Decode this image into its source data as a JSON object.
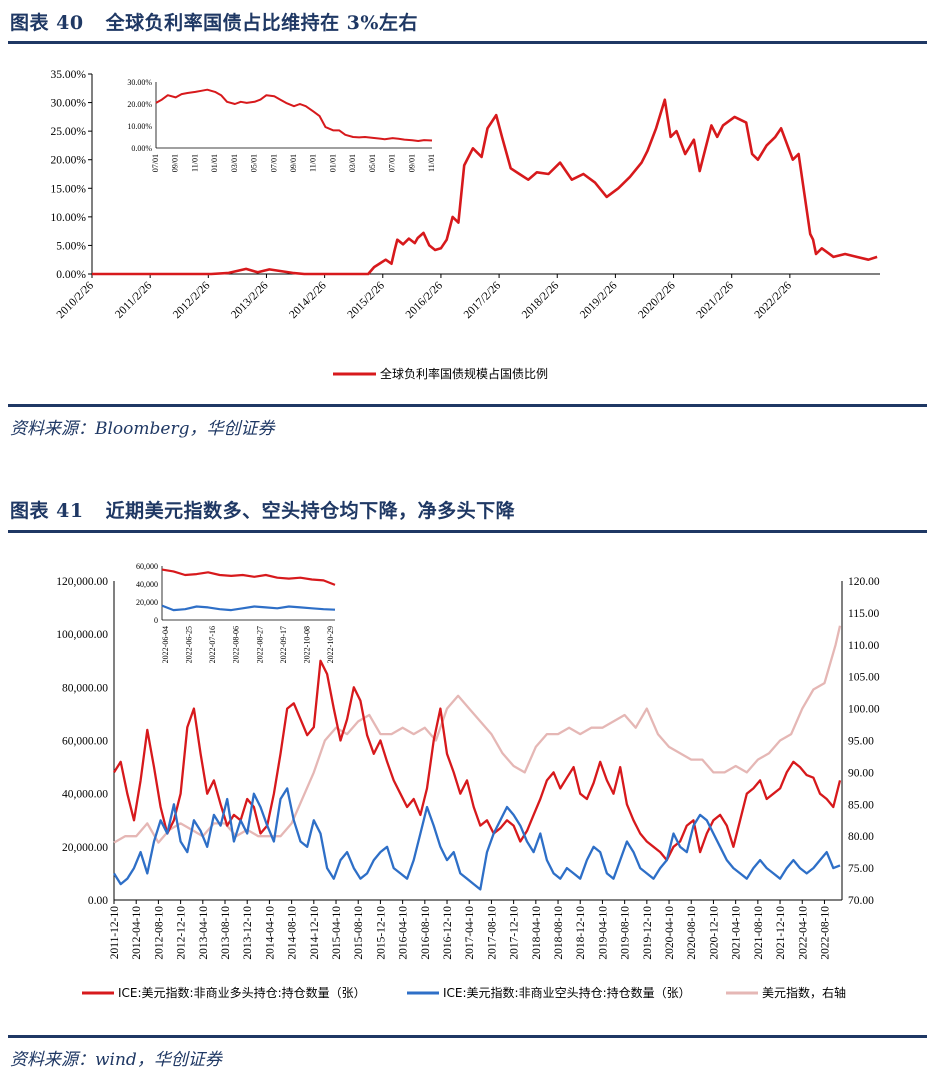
{
  "figure40": {
    "label": "图表 40",
    "title": "全球负利率国债占比维持在 3%左右",
    "source": "资料来源：Bloomberg，华创证券"
  },
  "figure41": {
    "label": "图表 41",
    "title": "近期美元指数多、空头持仓均下降，净多头下降",
    "source": "资料来源：wind，华创证券"
  },
  "chart_data": [
    {
      "type": "line",
      "title": "",
      "ylim": [
        0,
        35
      ],
      "y_ticks": [
        "35.00%",
        "30.00%",
        "25.00%",
        "20.00%",
        "15.00%",
        "10.00%",
        "5.00%",
        "0.00%"
      ],
      "x_ticks": [
        "2010/2/26",
        "2011/2/26",
        "2012/2/26",
        "2013/2/26",
        "2014/2/26",
        "2015/2/26",
        "2016/2/26",
        "2017/2/26",
        "2018/2/26",
        "2019/2/26",
        "2020/2/26",
        "2021/2/26",
        "2022/2/26"
      ],
      "legend_position": "bottom",
      "color": "#d7191c",
      "series": [
        {
          "name": "全球负利率国债规模占国债比例",
          "x": [
            2010.15,
            2012.2,
            2012.5,
            2012.8,
            2013.0,
            2013.2,
            2013.6,
            2013.8,
            2014.9,
            2015.0,
            2015.2,
            2015.3,
            2015.35,
            2015.4,
            2015.5,
            2015.6,
            2015.7,
            2015.75,
            2015.85,
            2015.95,
            2016.05,
            2016.15,
            2016.25,
            2016.35,
            2016.45,
            2016.55,
            2016.7,
            2016.85,
            2016.95,
            2017.1,
            2017.2,
            2017.35,
            2017.5,
            2017.65,
            2017.8,
            2018.0,
            2018.2,
            2018.4,
            2018.6,
            2018.8,
            2019.0,
            2019.2,
            2019.4,
            2019.6,
            2019.7,
            2019.85,
            2020.0,
            2020.1,
            2020.2,
            2020.35,
            2020.5,
            2020.6,
            2020.7,
            2020.8,
            2020.9,
            2021.0,
            2021.2,
            2021.4,
            2021.5,
            2021.6,
            2021.75,
            2021.9,
            2022.0,
            2022.2,
            2022.3,
            2022.4,
            2022.5,
            2022.55,
            2022.6,
            2022.7,
            2022.9,
            2023.1,
            2023.3,
            2023.5,
            2023.65
          ],
          "values": [
            0,
            0,
            0.2,
            0.9,
            0.3,
            0.8,
            0.2,
            0,
            0,
            1.2,
            2.5,
            1.8,
            4.0,
            6.0,
            5.2,
            6.2,
            5.4,
            6.3,
            7.2,
            5.0,
            4.2,
            4.5,
            6.0,
            10.0,
            9.0,
            19.0,
            22.0,
            20.5,
            25.5,
            27.8,
            24.0,
            18.5,
            17.5,
            16.5,
            17.8,
            17.5,
            19.5,
            16.5,
            17.5,
            16.0,
            13.5,
            15.0,
            17.0,
            19.5,
            21.5,
            25.5,
            30.5,
            24.0,
            25.0,
            21.0,
            23.5,
            18.0,
            22.0,
            26.0,
            24.0,
            26.0,
            27.5,
            26.5,
            21.0,
            20.0,
            22.5,
            24.0,
            25.5,
            20.0,
            21.0,
            14.0,
            7.0,
            6.0,
            3.5,
            4.5,
            3.0,
            3.5,
            3.0,
            2.5,
            3.0
          ]
        }
      ]
    },
    {
      "type": "line",
      "title": "",
      "inset": true,
      "ylim": [
        0,
        30
      ],
      "y_ticks": [
        "30.00%",
        "20.00%",
        "10.00%",
        "0.00%"
      ],
      "x_ticks": [
        "07/01",
        "09/01",
        "11/01",
        "01/01",
        "03/01",
        "05/01",
        "07/01",
        "09/01",
        "11/01",
        "01/01",
        "03/01",
        "05/01",
        "07/01",
        "09/01",
        "11/01"
      ],
      "color": "#d7191c",
      "series": [
        {
          "name": "",
          "x": [
            0,
            0.3,
            0.6,
            1,
            1.3,
            1.6,
            2,
            2.3,
            2.6,
            3,
            3.3,
            3.6,
            4,
            4.3,
            4.6,
            5,
            5.3,
            5.6,
            6,
            6.3,
            6.6,
            7,
            7.3,
            7.6,
            8,
            8.3,
            8.6,
            9,
            9.3,
            9.6,
            10,
            10.3,
            10.6,
            11,
            11.3,
            11.6,
            12,
            12.3,
            12.6,
            13,
            13.3,
            13.6,
            14
          ],
          "values": [
            20.5,
            22,
            24,
            23,
            24.5,
            25,
            25.5,
            26,
            26.5,
            25.5,
            24,
            21,
            20,
            21,
            20.5,
            21,
            22,
            24,
            23.5,
            22,
            20.5,
            19,
            20,
            19,
            16.5,
            14.5,
            9.5,
            8,
            8,
            6,
            5,
            4.8,
            5,
            4.6,
            4.3,
            4,
            4.5,
            4.2,
            3.8,
            3.5,
            3.2,
            3.6,
            3.4
          ]
        }
      ]
    },
    {
      "type": "line",
      "title": "",
      "ylim_left": [
        0,
        120000
      ],
      "ylim_right": [
        70,
        120
      ],
      "y_ticks_left": [
        "120,000.00",
        "100,000.00",
        "80,000.00",
        "60,000.00",
        "40,000.00",
        "20,000.00",
        "0.00"
      ],
      "y_ticks_right": [
        "120.00",
        "115.00",
        "110.00",
        "105.00",
        "100.00",
        "95.00",
        "90.00",
        "85.00",
        "80.00",
        "75.00",
        "70.00"
      ],
      "x_ticks": [
        "2011-12-10",
        "2012-04-10",
        "2012-08-10",
        "2012-12-10",
        "2013-04-10",
        "2013-08-10",
        "2013-12-10",
        "2014-04-10",
        "2014-08-10",
        "2014-12-10",
        "2015-04-10",
        "2015-08-10",
        "2015-12-10",
        "2016-04-10",
        "2016-08-10",
        "2016-12-10",
        "2017-04-10",
        "2017-08-10",
        "2017-12-10",
        "2018-04-10",
        "2018-08-10",
        "2018-12-10",
        "2019-04-10",
        "2019-08-10",
        "2019-12-10",
        "2020-04-10",
        "2020-08-10",
        "2020-12-10",
        "2021-04-10",
        "2021-08-10",
        "2021-12-10",
        "2022-04-10",
        "2022-08-10"
      ],
      "legend_position": "bottom",
      "series": [
        {
          "name": "ICE:美元指数:非商业多头持仓:持仓数量（张）",
          "axis": "left",
          "color": "#d7191c",
          "x": [
            0,
            0.3,
            0.6,
            0.9,
            1.2,
            1.5,
            1.8,
            2.1,
            2.4,
            2.7,
            3.0,
            3.3,
            3.6,
            3.9,
            4.2,
            4.5,
            4.8,
            5.1,
            5.4,
            5.7,
            6.0,
            6.3,
            6.6,
            6.9,
            7.2,
            7.5,
            7.8,
            8.1,
            8.4,
            8.7,
            9.0,
            9.3,
            9.6,
            9.9,
            10.2,
            10.5,
            10.8,
            11.1,
            11.4,
            11.7,
            12.0,
            12.3,
            12.6,
            12.9,
            13.2,
            13.5,
            13.8,
            14.1,
            14.4,
            14.7,
            15.0,
            15.3,
            15.6,
            15.9,
            16.2,
            16.5,
            16.8,
            17.1,
            17.4,
            17.7,
            18.0,
            18.3,
            18.6,
            18.9,
            19.2,
            19.5,
            19.8,
            20.1,
            20.4,
            20.7,
            21.0,
            21.3,
            21.6,
            21.9,
            22.2,
            22.5,
            22.8,
            23.1,
            23.4,
            23.7,
            24.0,
            24.3,
            24.6,
            24.9,
            25.2,
            25.5,
            25.8,
            26.1,
            26.4,
            26.7,
            27.0,
            27.3,
            27.6,
            27.9,
            28.2,
            28.5,
            28.8,
            29.1,
            29.4,
            29.7,
            30.0,
            30.3,
            30.6,
            30.9,
            31.2,
            31.5,
            31.8,
            32.1,
            32.4,
            32.7
          ],
          "values": [
            48000,
            52000,
            40000,
            30000,
            45000,
            64000,
            50000,
            35000,
            25000,
            30000,
            40000,
            65000,
            72000,
            55000,
            40000,
            45000,
            36000,
            28000,
            32000,
            30000,
            38000,
            35000,
            25000,
            28000,
            40000,
            55000,
            72000,
            74000,
            68000,
            62000,
            65000,
            90000,
            85000,
            72000,
            60000,
            68000,
            80000,
            75000,
            62000,
            55000,
            60000,
            52000,
            45000,
            40000,
            35000,
            38000,
            32000,
            42000,
            60000,
            72000,
            55000,
            48000,
            40000,
            45000,
            35000,
            28000,
            30000,
            25000,
            27000,
            30000,
            28000,
            22000,
            26000,
            32000,
            38000,
            45000,
            48000,
            42000,
            46000,
            50000,
            40000,
            38000,
            44000,
            52000,
            45000,
            40000,
            50000,
            36000,
            30000,
            25000,
            22000,
            20000,
            18000,
            15000,
            20000,
            22000,
            28000,
            30000,
            18000,
            25000,
            30000,
            32000,
            28000,
            20000,
            30000,
            40000,
            42000,
            45000,
            38000,
            40000,
            42000,
            48000,
            52000,
            50000,
            47000,
            46000,
            40000,
            38000,
            35000,
            45000
          ]
        },
        {
          "name": "ICE:美元指数:非商业空头持仓:持仓数量（张）",
          "axis": "left",
          "color": "#2e6fc7",
          "x": [
            0,
            0.3,
            0.6,
            0.9,
            1.2,
            1.5,
            1.8,
            2.1,
            2.4,
            2.7,
            3.0,
            3.3,
            3.6,
            3.9,
            4.2,
            4.5,
            4.8,
            5.1,
            5.4,
            5.7,
            6.0,
            6.3,
            6.6,
            6.9,
            7.2,
            7.5,
            7.8,
            8.1,
            8.4,
            8.7,
            9.0,
            9.3,
            9.6,
            9.9,
            10.2,
            10.5,
            10.8,
            11.1,
            11.4,
            11.7,
            12.0,
            12.3,
            12.6,
            12.9,
            13.2,
            13.5,
            13.8,
            14.1,
            14.4,
            14.7,
            15.0,
            15.3,
            15.6,
            15.9,
            16.2,
            16.5,
            16.8,
            17.1,
            17.4,
            17.7,
            18.0,
            18.3,
            18.6,
            18.9,
            19.2,
            19.5,
            19.8,
            20.1,
            20.4,
            20.7,
            21.0,
            21.3,
            21.6,
            21.9,
            22.2,
            22.5,
            22.8,
            23.1,
            23.4,
            23.7,
            24.0,
            24.3,
            24.6,
            24.9,
            25.2,
            25.5,
            25.8,
            26.1,
            26.4,
            26.7,
            27.0,
            27.3,
            27.6,
            27.9,
            28.2,
            28.5,
            28.8,
            29.1,
            29.4,
            29.7,
            30.0,
            30.3,
            30.6,
            30.9,
            31.2,
            31.5,
            31.8,
            32.1,
            32.4,
            32.7
          ],
          "values": [
            10000,
            6000,
            8000,
            12000,
            18000,
            10000,
            22000,
            30000,
            25000,
            36000,
            22000,
            18000,
            30000,
            26000,
            20000,
            32000,
            28000,
            38000,
            22000,
            30000,
            25000,
            40000,
            35000,
            28000,
            22000,
            38000,
            42000,
            30000,
            22000,
            20000,
            30000,
            25000,
            12000,
            8000,
            15000,
            18000,
            12000,
            8000,
            10000,
            15000,
            18000,
            20000,
            12000,
            10000,
            8000,
            15000,
            25000,
            35000,
            28000,
            20000,
            15000,
            18000,
            10000,
            8000,
            6000,
            4000,
            18000,
            25000,
            30000,
            35000,
            32000,
            28000,
            22000,
            18000,
            25000,
            15000,
            10000,
            8000,
            12000,
            10000,
            8000,
            15000,
            20000,
            18000,
            10000,
            8000,
            15000,
            22000,
            18000,
            12000,
            10000,
            8000,
            12000,
            15000,
            25000,
            20000,
            18000,
            28000,
            32000,
            30000,
            25000,
            20000,
            15000,
            12000,
            10000,
            8000,
            12000,
            15000,
            12000,
            10000,
            8000,
            12000,
            15000,
            12000,
            10000,
            12000,
            15000,
            18000,
            12000,
            13000
          ]
        },
        {
          "name": "美元指数，右轴",
          "axis": "right",
          "color": "#e5b7b5",
          "x": [
            0,
            0.5,
            1,
            1.5,
            2,
            2.5,
            3,
            3.5,
            4,
            4.5,
            5,
            5.5,
            6,
            6.5,
            7,
            7.5,
            8,
            8.5,
            9,
            9.5,
            10,
            10.5,
            11,
            11.5,
            12,
            12.5,
            13,
            13.5,
            14,
            14.5,
            15,
            15.5,
            16,
            16.5,
            17,
            17.5,
            18,
            18.5,
            19,
            19.5,
            20,
            20.5,
            21,
            21.5,
            22,
            22.5,
            23,
            23.5,
            24,
            24.5,
            25,
            25.5,
            26,
            26.5,
            27,
            27.5,
            28,
            28.5,
            29,
            29.5,
            30,
            30.5,
            31,
            31.5,
            32,
            32.5,
            32.7
          ],
          "values": [
            79,
            80,
            80,
            82,
            79,
            81,
            82,
            81,
            80,
            82,
            82,
            80,
            81,
            80,
            80,
            80,
            82,
            86,
            90,
            95,
            97,
            96,
            98,
            99,
            96,
            96,
            97,
            96,
            97,
            95,
            100,
            102,
            100,
            98,
            96,
            93,
            91,
            90,
            94,
            96,
            96,
            97,
            96,
            97,
            97,
            98,
            99,
            97,
            100,
            96,
            94,
            93,
            92,
            92,
            90,
            90,
            91,
            90,
            92,
            93,
            95,
            96,
            100,
            103,
            104,
            110,
            113
          ]
        }
      ]
    },
    {
      "type": "line",
      "title": "",
      "inset": true,
      "ylim": [
        0,
        60000
      ],
      "y_ticks": [
        "60,000",
        "40,000",
        "20,000",
        "0"
      ],
      "x_ticks": [
        "2022-06-04",
        "2022-06-25",
        "2022-07-16",
        "2022-08-06",
        "2022-08-27",
        "2022-09-17",
        "2022-10-08",
        "2022-10-29"
      ],
      "series": [
        {
          "name": "",
          "color": "#d7191c",
          "x": [
            0,
            0.5,
            1,
            1.5,
            2,
            2.5,
            3,
            3.5,
            4,
            4.5,
            5,
            5.5,
            6,
            6.5,
            7,
            7.5
          ],
          "values": [
            56000,
            54000,
            50000,
            51000,
            53000,
            50000,
            49000,
            50000,
            48000,
            50000,
            47000,
            46000,
            47000,
            45000,
            44000,
            39000
          ]
        },
        {
          "name": "",
          "color": "#2e6fc7",
          "x": [
            0,
            0.5,
            1,
            1.5,
            2,
            2.5,
            3,
            3.5,
            4,
            4.5,
            5,
            5.5,
            6,
            6.5,
            7,
            7.5
          ],
          "values": [
            16000,
            11000,
            12000,
            15000,
            14000,
            12000,
            11000,
            13000,
            15000,
            14000,
            13000,
            15000,
            14000,
            13000,
            12000,
            11500
          ]
        }
      ]
    }
  ]
}
